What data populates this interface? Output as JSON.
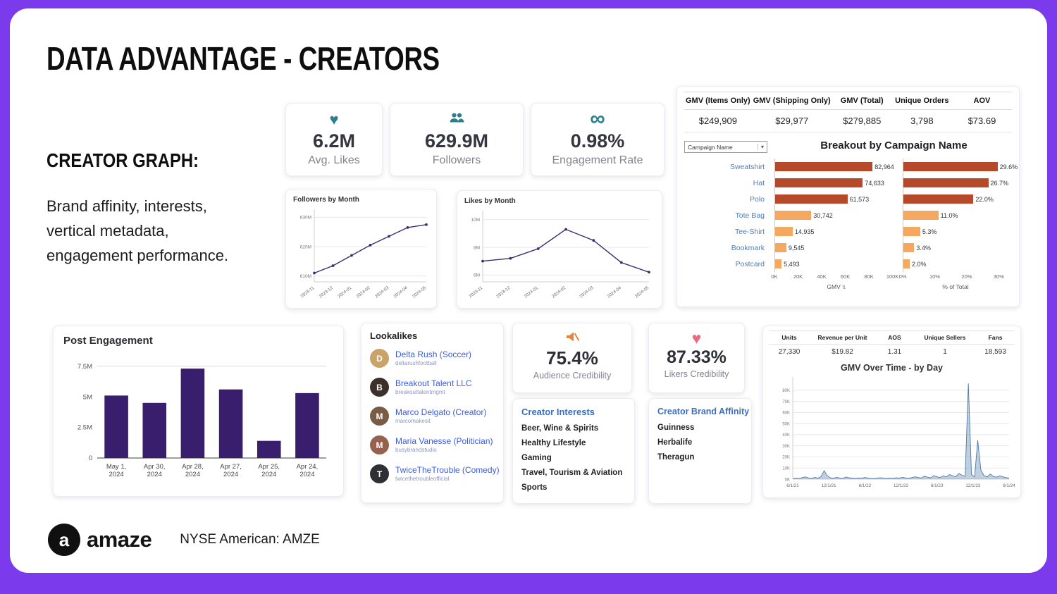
{
  "slide": {
    "title": "DATA ADVANTAGE - CREATORS",
    "section_heading": "CREATOR GRAPH:",
    "section_body_lines": [
      "Brand affinity, interests,",
      "vertical metadata,",
      "engagement performance."
    ],
    "brand": "amaze",
    "ticker": "NYSE American: AMZE",
    "logo_letter": "a"
  },
  "icons": {
    "heart": "♥",
    "infinity": "∞",
    "chevron_down": "▾",
    "sort": "⇅"
  },
  "colors": {
    "background": "#7C3AED",
    "accent_teal": "#2A7F8E",
    "line_purple": "#3D2B73",
    "bar_purple": "#3A1E6E",
    "bar_rust": "#B5492A",
    "bar_orange": "#F5A860",
    "link_blue": "#3B5CE0",
    "label_blue": "#4A7EBF",
    "heading_blue": "#3A6FC4",
    "spiky_blue": "#4E79A7",
    "icon_orange": "#E8833A",
    "icon_pink": "#F06A7E"
  },
  "kpis": [
    {
      "icon": "heart-icon",
      "value": "6.2M",
      "label": "Avg. Likes"
    },
    {
      "icon": "followers-icon",
      "value": "629.9M",
      "label": "Followers"
    },
    {
      "icon": "infinity-icon",
      "value": "0.98%",
      "label": "Engagement Rate"
    }
  ],
  "gmv_table": {
    "columns": [
      {
        "header": "GMV (Items Only)",
        "value": "$249,909"
      },
      {
        "header": "GMV (Shipping Only)",
        "value": "$29,977"
      },
      {
        "header": "GMV (Total)",
        "value": "$279,885"
      },
      {
        "header": "Unique Orders",
        "value": "3,798"
      },
      {
        "header": "AOV",
        "value": "$73.69"
      }
    ]
  },
  "breakout": {
    "dropdown_value": "Campaign Name"
  },
  "lookalikes": {
    "title": "Lookalikes",
    "items": [
      {
        "name": "Delta Rush (Soccer)",
        "handle": "deltarushfootball",
        "initial": "D",
        "avatar_color": "#c9a36a"
      },
      {
        "name": "Breakout Talent LLC",
        "handle": "breakouttalentmgmt",
        "initial": "B",
        "avatar_color": "#3d2f2a"
      },
      {
        "name": "Marco Delgato (Creator)",
        "handle": "marcomakesit",
        "initial": "M",
        "avatar_color": "#7a5c44"
      },
      {
        "name": "Maria Vanesse (Politician)",
        "handle": "busybrandstudio",
        "initial": "M",
        "avatar_color": "#96624e"
      },
      {
        "name": "TwiceTheTrouble (Comedy)",
        "handle": "twicethetroubleofficial",
        "initial": "T",
        "avatar_color": "#2f2f36"
      }
    ]
  },
  "credibility": {
    "audience": {
      "value": "75.4%",
      "label": "Audience Credibility"
    },
    "likers": {
      "value": "87.33%",
      "label": "Likers Credibility"
    }
  },
  "interests": {
    "title": "Creator Interests",
    "items": [
      "Beer, Wine & Spirits",
      "Healthy Lifestyle",
      "Gaming",
      "Travel, Tourism & Aviation",
      "Sports"
    ]
  },
  "affinity": {
    "title": "Creator Brand Affinity",
    "items": [
      "Guinness",
      "Herbalife",
      "Theragun"
    ]
  },
  "units_table": {
    "columns": [
      {
        "header": "Units",
        "value": "27,330"
      },
      {
        "header": "Revenue per Unit",
        "value": "$19.82"
      },
      {
        "header": "AOS",
        "value": "1.31"
      },
      {
        "header": "Unique Sellers",
        "value": "1"
      },
      {
        "header": "Fans",
        "value": "18,593"
      }
    ]
  },
  "chart_data": [
    {
      "id": "followers_by_month",
      "type": "line",
      "title": "Followers by Month",
      "x": [
        "2023-11",
        "2023-12",
        "2024-01",
        "2024-02",
        "2024-03",
        "2024-04",
        "2024-05"
      ],
      "values": [
        611,
        613.5,
        617,
        620.5,
        623.5,
        626.5,
        627.5
      ],
      "ylim": [
        608,
        632
      ],
      "yticks": [
        610,
        620,
        630
      ],
      "ytick_suffix": "M"
    },
    {
      "id": "likes_by_month",
      "type": "line",
      "title": "Likes by Month",
      "x": [
        "2023-11",
        "2023-12",
        "2024-01",
        "2024-02",
        "2024-03",
        "2024-04",
        "2024-05"
      ],
      "values": [
        7.0,
        7.2,
        7.9,
        9.3,
        8.5,
        6.9,
        6.2
      ],
      "ylim": [
        5.5,
        10.5
      ],
      "yticks": [
        6,
        8,
        10
      ],
      "ytick_suffix": "M"
    },
    {
      "id": "post_engagement",
      "type": "bar",
      "title": "Post Engagement",
      "categories": [
        "May 1, 2024",
        "Apr 30, 2024",
        "Apr 28, 2024",
        "Apr 27, 2024",
        "Apr 25, 2024",
        "Apr 24, 2024"
      ],
      "values": [
        5.1,
        4.5,
        7.3,
        5.6,
        1.4,
        5.3
      ],
      "ylim": [
        0,
        8.4
      ],
      "yticks": [
        0,
        2.5,
        5,
        7.5
      ],
      "ytick_labels": [
        "0",
        "2.5M",
        "5M",
        "7.5M"
      ]
    },
    {
      "id": "campaign_breakout",
      "type": "bar",
      "orientation": "horizontal",
      "title": "Breakout by Campaign Name",
      "categories": [
        "Sweatshirt",
        "Hat",
        "Polo",
        "Tote Bag",
        "Tee-Shirt",
        "Bookmark",
        "Postcard"
      ],
      "series": [
        {
          "name": "GMV",
          "values": [
            82964,
            74633,
            61573,
            30742,
            14935,
            9545,
            5493
          ],
          "labels": [
            "82,964",
            "74,633",
            "61,573",
            "30,742",
            "14,935",
            "9,545",
            "5,493"
          ],
          "max": 105000,
          "ticks": [
            {
              "v": 0,
              "label": "0K"
            },
            {
              "v": 20000,
              "label": "20K"
            },
            {
              "v": 40000,
              "label": "40K"
            },
            {
              "v": 60000,
              "label": "60K"
            },
            {
              "v": 80000,
              "label": "80K"
            },
            {
              "v": 100000,
              "label": "100K"
            }
          ]
        },
        {
          "name": "% of Total",
          "values": [
            29.6,
            26.7,
            22.0,
            11.0,
            5.3,
            3.4,
            2.0
          ],
          "labels": [
            "29.6%",
            "26.7%",
            "22.0%",
            "11.0%",
            "5.3%",
            "3.4%",
            "2.0%"
          ],
          "max": 33,
          "ticks": [
            {
              "v": 0,
              "label": "0%"
            },
            {
              "v": 10,
              "label": "10%"
            },
            {
              "v": 20,
              "label": "20%"
            },
            {
              "v": 30,
              "label": "30%"
            }
          ]
        }
      ],
      "bar_colors": [
        "#B5492A",
        "#B5492A",
        "#B5492A",
        "#F5A860",
        "#F5A860",
        "#F5A860",
        "#F5A860"
      ]
    },
    {
      "id": "gmv_over_time",
      "type": "line",
      "title": "GMV Over Time - by Day",
      "x_ticks": [
        "6/1/21",
        "12/1/21",
        "6/1/22",
        "12/1/22",
        "6/1/23",
        "12/1/23",
        "6/1/24"
      ],
      "values": [
        0.4,
        0.9,
        0.5,
        1.3,
        2.1,
        1.0,
        0.6,
        1.6,
        0.9,
        2.3,
        7.6,
        3.1,
        1.2,
        0.8,
        1.6,
        1.0,
        0.7,
        1.9,
        1.2,
        0.9,
        0.6,
        1.1,
        0.8,
        1.5,
        1.0,
        0.7,
        0.5,
        0.9,
        1.3,
        0.8,
        0.6,
        1.0,
        0.7,
        1.2,
        0.9,
        1.6,
        1.1,
        0.8,
        1.4,
        2.1,
        1.5,
        1.0,
        2.6,
        1.8,
        1.2,
        3.1,
        2.1,
        1.5,
        2.9,
        2.0,
        4.1,
        3.0,
        2.2,
        5.1,
        3.4,
        2.6,
        86.0,
        4.2,
        2.1,
        35.0,
        8.1,
        3.2,
        2.0,
        4.6,
        2.4,
        1.8,
        3.0,
        2.1,
        1.4,
        1.0
      ],
      "ylim": [
        0,
        90
      ],
      "yticks": [
        0,
        10,
        20,
        30,
        40,
        50,
        60,
        70,
        80
      ],
      "ytick_suffix": "K"
    }
  ]
}
